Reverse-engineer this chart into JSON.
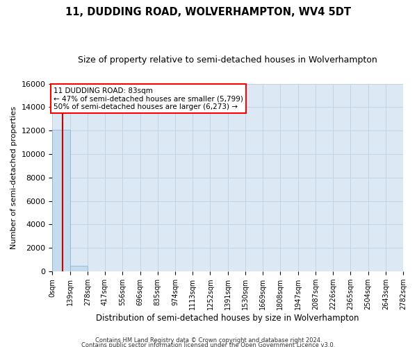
{
  "title": "11, DUDDING ROAD, WOLVERHAMPTON, WV4 5DT",
  "subtitle": "Size of property relative to semi-detached houses in Wolverhampton",
  "xlabel": "Distribution of semi-detached houses by size in Wolverhampton",
  "ylabel": "Number of semi-detached properties",
  "footnote1": "Contains HM Land Registry data © Crown copyright and database right 2024.",
  "footnote2": "Contains public sector information licensed under the Open Government Licence v3.0.",
  "bar_color": "#c5dcef",
  "bar_edge_color": "#7bafd4",
  "grid_color": "#c0d4e8",
  "background_color": "#dce9f5",
  "red_line_color": "#cc0000",
  "property_label": "11 DUDDING ROAD: 83sqm",
  "pct_smaller": 47,
  "n_smaller": "5,799",
  "pct_larger": 50,
  "n_larger": "6,273",
  "bin_edges": [
    0,
    139,
    278,
    417,
    556,
    696,
    835,
    974,
    1113,
    1252,
    1391,
    1530,
    1669,
    1808,
    1947,
    2087,
    2226,
    2365,
    2504,
    2643,
    2782
  ],
  "bar_heights": [
    12073,
    500,
    0,
    0,
    0,
    0,
    0,
    0,
    0,
    0,
    0,
    0,
    0,
    0,
    0,
    0,
    0,
    0,
    0,
    0
  ],
  "ylim": [
    0,
    16000
  ],
  "yticks": [
    0,
    2000,
    4000,
    6000,
    8000,
    10000,
    12000,
    14000,
    16000
  ],
  "red_line_x": 83
}
